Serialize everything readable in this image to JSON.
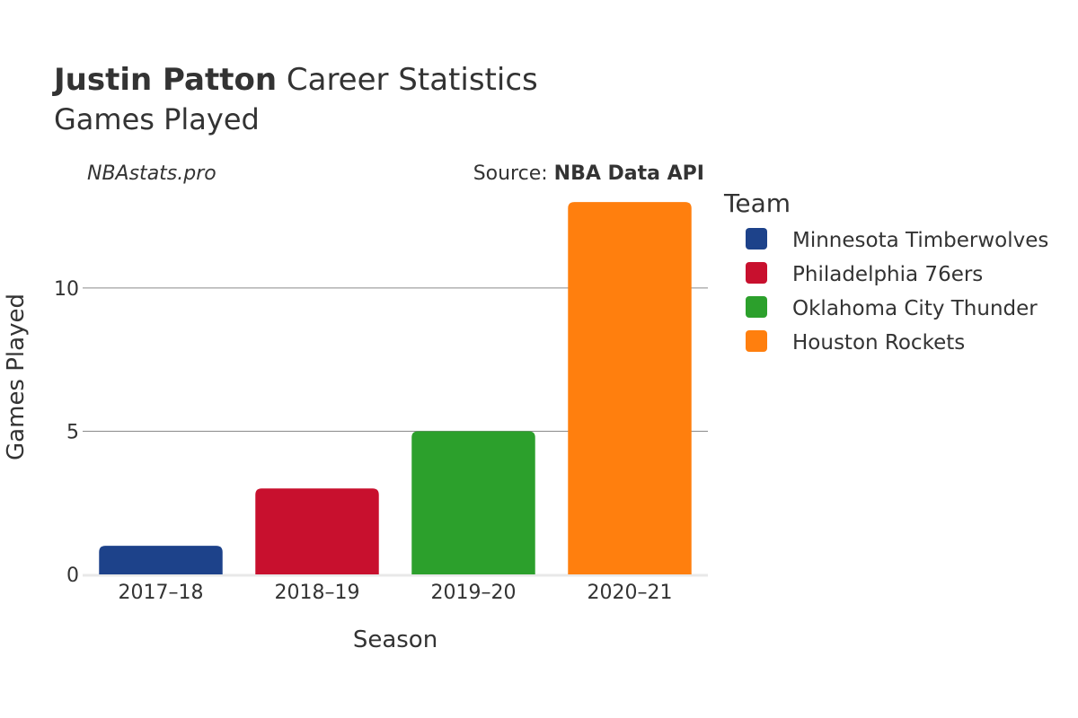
{
  "header": {
    "title_bold": "Justin Patton",
    "title_rest": " Career Statistics",
    "subtitle": "Games Played",
    "watermark": "NBAstats.pro",
    "source_prefix": "Source: ",
    "source_name": "NBA Data API"
  },
  "legend": {
    "title": "Team",
    "placement": "right"
  },
  "chart_data": {
    "type": "bar",
    "title": "Justin Patton Career Statistics",
    "subtitle": "Games Played",
    "xlabel": "Season",
    "ylabel": "Games Played",
    "categories": [
      "2017–18",
      "2018–19",
      "2019–20",
      "2020–21"
    ],
    "series": [
      {
        "name": "Minnesota Timberwolves",
        "color": "#1d428a",
        "values": [
          1,
          null,
          null,
          null
        ]
      },
      {
        "name": "Philadelphia 76ers",
        "color": "#c8102e",
        "values": [
          null,
          3,
          null,
          null
        ]
      },
      {
        "name": "Oklahoma City Thunder",
        "color": "#2ca02c",
        "values": [
          null,
          null,
          5,
          null
        ]
      },
      {
        "name": "Houston Rockets",
        "color": "#ff7f0e",
        "values": [
          null,
          null,
          null,
          13
        ]
      }
    ],
    "ylim": [
      0,
      13.6
    ],
    "yticks": [
      0,
      5,
      10
    ],
    "grid": true,
    "legend_position": "right"
  }
}
